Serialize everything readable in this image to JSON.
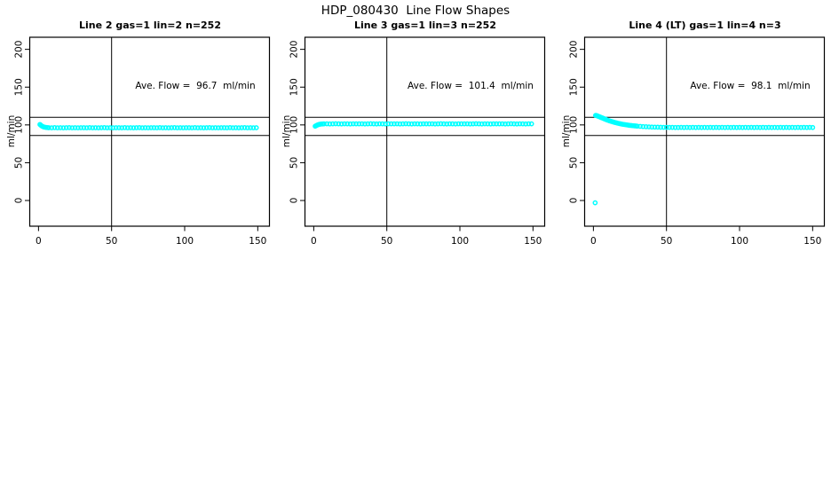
{
  "title": "HDP_080430  Line Flow Shapes",
  "marker_color": "#00FFFF",
  "chart_data": [
    {
      "type": "scatter",
      "title": "Line 2 gas=1 lin=2 n=252",
      "ylabel": "ml/min",
      "annotation": "Ave. Flow =  96.7  ml/min",
      "ave_flow": 96.7,
      "xticks": [
        0,
        50,
        100,
        150
      ],
      "yticks": [
        0,
        50,
        100,
        150,
        200
      ],
      "xlim": [
        -6,
        158
      ],
      "ylim": [
        -34,
        216
      ],
      "vline": 50,
      "hlines": [
        110,
        86
      ],
      "grid": false,
      "marker": "circle-open",
      "marker_color": "#00FFFF",
      "points": [
        [
          1,
          100.6
        ],
        [
          1.7,
          99.4
        ],
        [
          2.4,
          98.4
        ],
        [
          3.2,
          97.6
        ],
        [
          4,
          97.1
        ],
        [
          5,
          96.7
        ],
        [
          6,
          96.5
        ],
        [
          7,
          96.3
        ],
        [
          9,
          96.2
        ],
        [
          11,
          96.4
        ],
        [
          13,
          96.2
        ],
        [
          15,
          96.3
        ],
        [
          17,
          96.1
        ],
        [
          19,
          96.3
        ],
        [
          21,
          96.4
        ],
        [
          23,
          96.2
        ],
        [
          25,
          96.3
        ],
        [
          27,
          96.2
        ],
        [
          29,
          96.3
        ],
        [
          31,
          96.3
        ],
        [
          33,
          96.2
        ],
        [
          35,
          96.4
        ],
        [
          37,
          96.2
        ],
        [
          39,
          96.3
        ],
        [
          41,
          96.1
        ],
        [
          43,
          96.3
        ],
        [
          45,
          96.4
        ],
        [
          47,
          96.2
        ],
        [
          49,
          96.3
        ],
        [
          51,
          96.2
        ],
        [
          53,
          96.3
        ],
        [
          55,
          96.3
        ],
        [
          57,
          96.2
        ],
        [
          59,
          96.4
        ],
        [
          61,
          96.2
        ],
        [
          63,
          96.3
        ],
        [
          65,
          96.1
        ],
        [
          67,
          96.3
        ],
        [
          69,
          96.4
        ],
        [
          71,
          96.2
        ],
        [
          73,
          96.3
        ],
        [
          75,
          96.2
        ],
        [
          77,
          96.3
        ],
        [
          79,
          96.3
        ],
        [
          81,
          96.2
        ],
        [
          83,
          96.4
        ],
        [
          85,
          96.2
        ],
        [
          87,
          96.3
        ],
        [
          89,
          96.1
        ],
        [
          91,
          96.3
        ],
        [
          93,
          96.4
        ],
        [
          95,
          96.2
        ],
        [
          97,
          96.3
        ],
        [
          99,
          96.2
        ],
        [
          101,
          96.3
        ],
        [
          103,
          96.3
        ],
        [
          105,
          96.2
        ],
        [
          107,
          96.4
        ],
        [
          109,
          96.2
        ],
        [
          111,
          96.3
        ],
        [
          113,
          96.1
        ],
        [
          115,
          96.3
        ],
        [
          117,
          96.4
        ],
        [
          119,
          96.2
        ],
        [
          121,
          96.3
        ],
        [
          123,
          96.2
        ],
        [
          125,
          96.3
        ],
        [
          127,
          96.3
        ],
        [
          129,
          96.2
        ],
        [
          131,
          96.4
        ],
        [
          133,
          96.2
        ],
        [
          135,
          96.3
        ],
        [
          137,
          96.1
        ],
        [
          139,
          96.3
        ],
        [
          141,
          96.4
        ],
        [
          143,
          96.2
        ],
        [
          145,
          96.3
        ],
        [
          147,
          96.2
        ],
        [
          149,
          96.3
        ]
      ]
    },
    {
      "type": "scatter",
      "title": "Line 3 gas=1 lin=3 n=252",
      "ylabel": "ml/min",
      "annotation": "Ave. Flow =  101.4  ml/min",
      "ave_flow": 101.4,
      "xticks": [
        0,
        50,
        100,
        150
      ],
      "yticks": [
        0,
        50,
        100,
        150,
        200
      ],
      "xlim": [
        -6,
        158
      ],
      "ylim": [
        -34,
        216
      ],
      "vline": 50,
      "hlines": [
        110,
        86
      ],
      "grid": false,
      "marker": "circle-open",
      "marker_color": "#00FFFF",
      "points": [
        [
          1,
          98.3
        ],
        [
          1.7,
          99.1
        ],
        [
          2.4,
          99.8
        ],
        [
          3.2,
          100.4
        ],
        [
          4,
          100.8
        ],
        [
          5,
          101.1
        ],
        [
          6,
          101.3
        ],
        [
          7,
          101.4
        ],
        [
          9,
          101.5
        ],
        [
          11,
          101.3
        ],
        [
          13,
          101.4
        ],
        [
          15,
          101.6
        ],
        [
          17,
          101.4
        ],
        [
          19,
          101.3
        ],
        [
          21,
          101.5
        ],
        [
          23,
          101.4
        ],
        [
          25,
          101.3
        ],
        [
          27,
          101.5
        ],
        [
          29,
          101.4
        ],
        [
          31,
          101.4
        ],
        [
          33,
          101.5
        ],
        [
          35,
          101.3
        ],
        [
          37,
          101.4
        ],
        [
          39,
          101.6
        ],
        [
          41,
          101.4
        ],
        [
          43,
          101.3
        ],
        [
          45,
          101.5
        ],
        [
          47,
          101.4
        ],
        [
          49,
          101.3
        ],
        [
          51,
          101.5
        ],
        [
          53,
          101.4
        ],
        [
          55,
          101.4
        ],
        [
          57,
          101.5
        ],
        [
          59,
          101.3
        ],
        [
          61,
          101.4
        ],
        [
          63,
          101.6
        ],
        [
          65,
          101.4
        ],
        [
          67,
          101.3
        ],
        [
          69,
          101.5
        ],
        [
          71,
          101.4
        ],
        [
          73,
          101.3
        ],
        [
          75,
          101.5
        ],
        [
          77,
          101.4
        ],
        [
          79,
          101.4
        ],
        [
          81,
          101.5
        ],
        [
          83,
          101.3
        ],
        [
          85,
          101.4
        ],
        [
          87,
          101.6
        ],
        [
          89,
          101.4
        ],
        [
          91,
          101.3
        ],
        [
          93,
          101.5
        ],
        [
          95,
          101.4
        ],
        [
          97,
          101.3
        ],
        [
          99,
          101.5
        ],
        [
          101,
          101.4
        ],
        [
          103,
          101.4
        ],
        [
          105,
          101.5
        ],
        [
          107,
          101.3
        ],
        [
          109,
          101.4
        ],
        [
          111,
          101.6
        ],
        [
          113,
          101.4
        ],
        [
          115,
          101.3
        ],
        [
          117,
          101.5
        ],
        [
          119,
          101.4
        ],
        [
          121,
          101.3
        ],
        [
          123,
          101.5
        ],
        [
          125,
          101.4
        ],
        [
          127,
          101.4
        ],
        [
          129,
          101.5
        ],
        [
          131,
          101.3
        ],
        [
          133,
          101.4
        ],
        [
          135,
          101.6
        ],
        [
          137,
          101.4
        ],
        [
          139,
          101.3
        ],
        [
          141,
          101.5
        ],
        [
          143,
          101.4
        ],
        [
          145,
          101.3
        ],
        [
          147,
          101.5
        ],
        [
          149,
          101.4
        ]
      ]
    },
    {
      "type": "scatter",
      "title": "Line 4 (LT) gas=1 lin=4 n=3",
      "ylabel": "ml/min",
      "annotation": "Ave. Flow =  98.1  ml/min",
      "ave_flow": 98.1,
      "xticks": [
        0,
        50,
        100,
        150
      ],
      "yticks": [
        0,
        50,
        100,
        150,
        200
      ],
      "xlim": [
        -6,
        158
      ],
      "ylim": [
        -34,
        216
      ],
      "vline": 50,
      "hlines": [
        110,
        86
      ],
      "grid": false,
      "marker": "circle-open",
      "marker_color": "#00FFFF",
      "points": [
        [
          1.2,
          -3
        ],
        [
          1.5,
          112.6
        ],
        [
          2,
          112.4
        ],
        [
          2.5,
          112.1
        ],
        [
          3,
          111.7
        ],
        [
          3.5,
          111.3
        ],
        [
          4,
          110.9
        ],
        [
          4.5,
          110.5
        ],
        [
          5,
          110.1
        ],
        [
          5.5,
          109.7
        ],
        [
          6,
          109.3
        ],
        [
          6.5,
          108.9
        ],
        [
          7,
          108.5
        ],
        [
          7.5,
          108.1
        ],
        [
          8,
          107.7
        ],
        [
          8.5,
          107.3
        ],
        [
          9,
          106.9
        ],
        [
          9.5,
          106.5
        ],
        [
          10,
          106.1
        ],
        [
          11,
          105.4
        ],
        [
          12,
          104.8
        ],
        [
          13,
          104.2
        ],
        [
          14,
          103.6
        ],
        [
          15,
          103.1
        ],
        [
          16,
          102.6
        ],
        [
          17,
          102.1
        ],
        [
          18,
          101.7
        ],
        [
          19,
          101.3
        ],
        [
          20,
          100.9
        ],
        [
          21,
          100.6
        ],
        [
          22,
          100.3
        ],
        [
          23,
          100.0
        ],
        [
          24,
          99.7
        ],
        [
          25,
          99.4
        ],
        [
          26,
          99.2
        ],
        [
          27,
          99.0
        ],
        [
          28,
          98.8
        ],
        [
          29,
          98.6
        ],
        [
          30,
          98.4
        ],
        [
          32,
          98.1
        ],
        [
          34,
          97.8
        ],
        [
          36,
          97.6
        ],
        [
          38,
          97.4
        ],
        [
          40,
          97.2
        ],
        [
          42,
          97.1
        ],
        [
          44,
          97.0
        ],
        [
          46,
          96.9
        ],
        [
          48,
          96.8
        ],
        [
          50,
          96.8
        ],
        [
          52,
          96.7
        ],
        [
          54,
          96.7
        ],
        [
          56,
          96.6
        ],
        [
          58,
          96.6
        ],
        [
          60,
          96.7
        ],
        [
          62,
          96.6
        ],
        [
          64,
          96.7
        ],
        [
          66,
          96.6
        ],
        [
          68,
          96.7
        ],
        [
          70,
          96.6
        ],
        [
          72,
          96.7
        ],
        [
          74,
          96.6
        ],
        [
          76,
          96.7
        ],
        [
          78,
          96.6
        ],
        [
          80,
          96.7
        ],
        [
          82,
          96.6
        ],
        [
          84,
          96.7
        ],
        [
          86,
          96.6
        ],
        [
          88,
          96.7
        ],
        [
          90,
          96.6
        ],
        [
          92,
          96.7
        ],
        [
          94,
          96.6
        ],
        [
          96,
          96.7
        ],
        [
          98,
          96.6
        ],
        [
          100,
          96.7
        ],
        [
          102,
          96.6
        ],
        [
          104,
          96.7
        ],
        [
          106,
          96.6
        ],
        [
          108,
          96.7
        ],
        [
          110,
          96.6
        ],
        [
          112,
          96.7
        ],
        [
          114,
          96.6
        ],
        [
          116,
          96.7
        ],
        [
          118,
          96.6
        ],
        [
          120,
          96.7
        ],
        [
          122,
          96.6
        ],
        [
          124,
          96.7
        ],
        [
          126,
          96.6
        ],
        [
          128,
          96.7
        ],
        [
          130,
          96.6
        ],
        [
          132,
          96.7
        ],
        [
          134,
          96.6
        ],
        [
          136,
          96.7
        ],
        [
          138,
          96.6
        ],
        [
          140,
          96.7
        ],
        [
          142,
          96.6
        ],
        [
          144,
          96.7
        ],
        [
          146,
          96.6
        ],
        [
          148,
          96.7
        ],
        [
          150,
          96.6
        ]
      ]
    }
  ]
}
